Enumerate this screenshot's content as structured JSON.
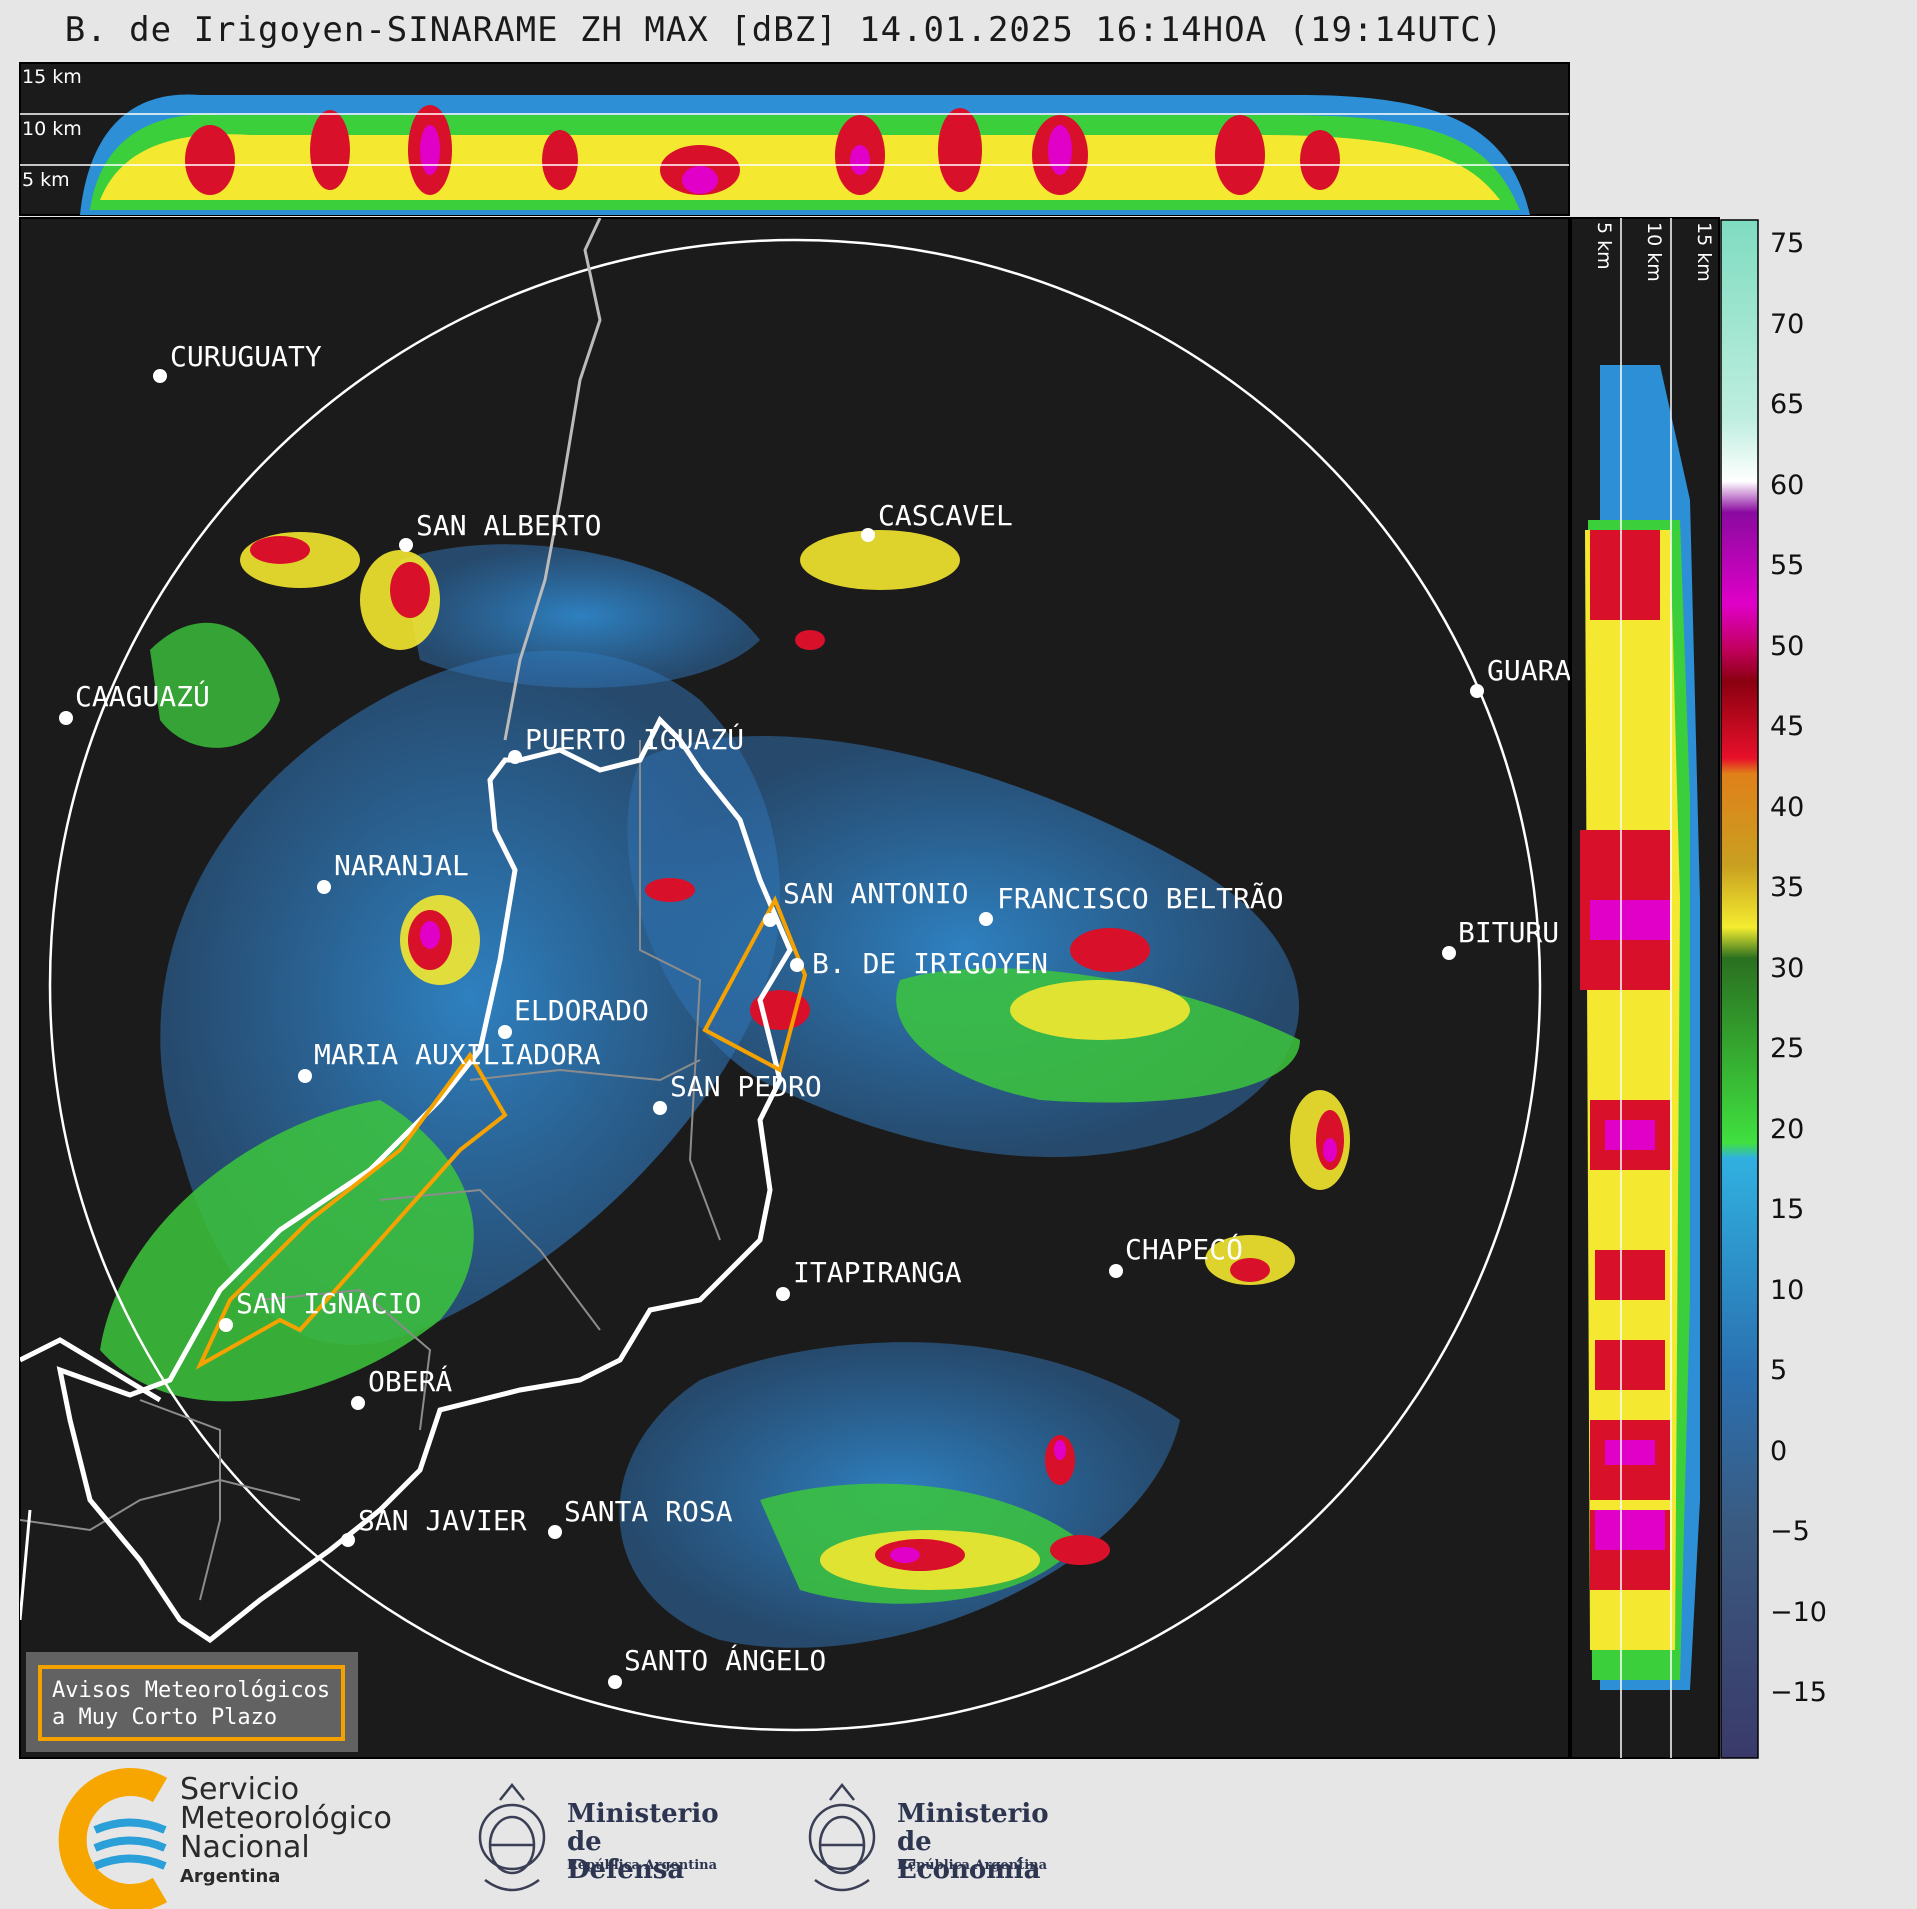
{
  "title": "B. de Irigoyen-SINARAME ZH MAX [dBZ] 14.01.2025 16:14HOA (19:14UTC)",
  "profile_labels": {
    "top_km": [
      "15 km",
      "10 km",
      "5 km"
    ],
    "side_km": [
      "5 km",
      "10 km",
      "15 km"
    ]
  },
  "cities": [
    {
      "name": "CURUGUATY"
    },
    {
      "name": "SAN ALBERTO"
    },
    {
      "name": "CASCAVEL"
    },
    {
      "name": "CAAGUAZÚ"
    },
    {
      "name": "GUARA"
    },
    {
      "name": "PUERTO IGUAZÚ"
    },
    {
      "name": "NARANJAL"
    },
    {
      "name": "SAN ANTONIO"
    },
    {
      "name": "FRANCISCO BELTRÃO"
    },
    {
      "name": "BITURU"
    },
    {
      "name": "B. DE IRIGOYEN"
    },
    {
      "name": "ELDORADO"
    },
    {
      "name": "MARIA AUXILIADORA"
    },
    {
      "name": "SAN PEDRO"
    },
    {
      "name": "ITAPIRANGA"
    },
    {
      "name": "CHAPECÓ"
    },
    {
      "name": "SAN IGNACIO"
    },
    {
      "name": "OBERÁ"
    },
    {
      "name": "SAN JAVIER"
    },
    {
      "name": "SANTA ROSA"
    },
    {
      "name": "SANTO ÁNGELO"
    }
  ],
  "legend_box": {
    "line1": "Avisos Meteorológicos",
    "line2": "a Muy Corto Plazo"
  },
  "colorbar": {
    "unit": "dBZ",
    "ticks": [
      "75",
      "70",
      "65",
      "60",
      "55",
      "50",
      "45",
      "40",
      "35",
      "30",
      "25",
      "20",
      "15",
      "10",
      "5",
      "0",
      "−5",
      "−10",
      "−15"
    ]
  },
  "footer": {
    "smn": {
      "line1": "Servicio",
      "line2": "Meteorológico",
      "line3": "Nacional",
      "line4": "Argentina"
    },
    "defensa": {
      "line1": "Ministerio",
      "line2": "de Defensa",
      "sub": "República Argentina"
    },
    "economia": {
      "line1": "Ministerio",
      "line2": "de Economía",
      "sub": "República Argentina"
    }
  },
  "colors": {
    "background": "#1b1b1b",
    "range_ring": "#ffffff",
    "warning_polygon": "#f5a200",
    "border_white": "#ffffff",
    "border_gray": "#8c8c8c"
  }
}
